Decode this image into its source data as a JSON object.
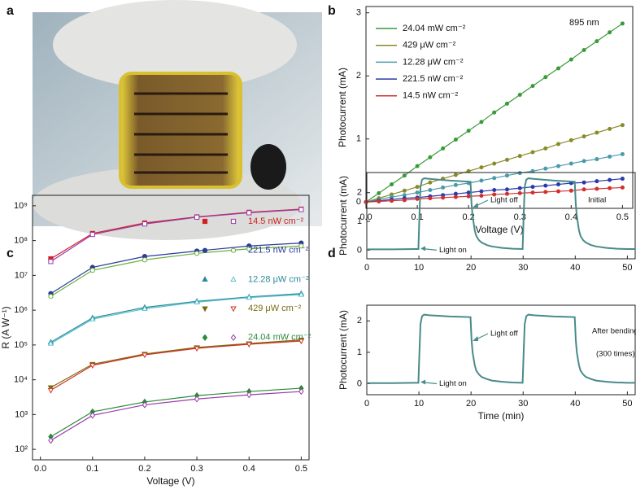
{
  "chart_data": [
    {
      "type": "image",
      "panel": "a"
    },
    {
      "type": "line",
      "panel": "b",
      "x_label": "Voltage (V)",
      "y_label": "Photocurrent (mA)",
      "annotation": "895 nm",
      "legend": "upper left",
      "x": [
        0,
        0.025,
        0.05,
        0.075,
        0.1,
        0.125,
        0.15,
        0.175,
        0.2,
        0.225,
        0.25,
        0.275,
        0.3,
        0.325,
        0.35,
        0.375,
        0.4,
        0.425,
        0.45,
        0.475,
        0.5
      ],
      "series": [
        {
          "name": "24.04 mW cm⁻²",
          "color": "#3a9a3a",
          "marker": "circle",
          "values": [
            0,
            0.14,
            0.28,
            0.42,
            0.57,
            0.71,
            0.85,
            0.99,
            1.13,
            1.27,
            1.42,
            1.56,
            1.7,
            1.84,
            1.98,
            2.12,
            2.26,
            2.41,
            2.55,
            2.69,
            2.83
          ]
        },
        {
          "name": "429 μW cm⁻²",
          "color": "#8a8a2a",
          "marker": "circle",
          "values": [
            0,
            0.06,
            0.12,
            0.18,
            0.24,
            0.31,
            0.37,
            0.43,
            0.49,
            0.55,
            0.61,
            0.67,
            0.73,
            0.79,
            0.85,
            0.92,
            0.98,
            1.04,
            1.1,
            1.16,
            1.22
          ]
        },
        {
          "name": "12.28 μW cm⁻²",
          "color": "#4a9aaa",
          "marker": "circle",
          "values": [
            0,
            0.04,
            0.08,
            0.11,
            0.15,
            0.19,
            0.23,
            0.27,
            0.3,
            0.34,
            0.38,
            0.42,
            0.46,
            0.49,
            0.53,
            0.57,
            0.61,
            0.65,
            0.68,
            0.72,
            0.76
          ]
        },
        {
          "name": "221.5 nW cm⁻²",
          "color": "#2a3aaa",
          "marker": "circle",
          "values": [
            0,
            0.02,
            0.04,
            0.06,
            0.07,
            0.09,
            0.11,
            0.13,
            0.15,
            0.17,
            0.19,
            0.2,
            0.22,
            0.24,
            0.26,
            0.28,
            0.3,
            0.31,
            0.33,
            0.35,
            0.37
          ]
        },
        {
          "name": "14.5 nW cm⁻²",
          "color": "#d03030",
          "marker": "circle",
          "values": [
            0,
            0.01,
            0.02,
            0.03,
            0.05,
            0.06,
            0.07,
            0.08,
            0.09,
            0.1,
            0.12,
            0.13,
            0.14,
            0.15,
            0.16,
            0.17,
            0.18,
            0.2,
            0.21,
            0.22,
            0.23
          ]
        }
      ],
      "xlim": [
        0,
        0.52
      ],
      "ylim": [
        -0.1,
        3.1
      ],
      "xticks": [
        {
          "value": 0,
          "label": "0.0"
        },
        0.1,
        0.2,
        0.3,
        0.4,
        0.5
      ],
      "yticks": [
        0,
        1,
        2,
        3
      ]
    },
    {
      "type": "scatter",
      "panel": "c",
      "log_y": true,
      "fit": true,
      "x_label": "Voltage (V)",
      "y_label": "R (A W⁻¹)",
      "x": [
        0.02,
        0.1,
        0.2,
        0.3,
        0.4,
        0.5
      ],
      "series": [
        {
          "name": "14.5 nW cm⁻²",
          "color": "#d02020",
          "marker": "square",
          "values": [
            30000000,
            160000000,
            320000000,
            480000000,
            650000000,
            800000000
          ],
          "open_color": "#9a3aaa",
          "open_marker": "square",
          "open_values": [
            25000000,
            150000000,
            300000000,
            470000000,
            630000000,
            780000000
          ]
        },
        {
          "name": "221.5 nW cm⁻²",
          "color": "#2a3a9a",
          "marker": "circle",
          "values": [
            3000000,
            17000000,
            35000000,
            50000000,
            70000000,
            85000000
          ],
          "open_color": "#6ab03a",
          "open_marker": "circle",
          "open_values": [
            2500000,
            14000000,
            28000000,
            43000000,
            58000000,
            70000000
          ]
        },
        {
          "name": "12.28 μW cm⁻²",
          "color": "#2a8a9a",
          "marker": "triangle-up",
          "values": [
            120000,
            600000,
            1200000,
            1800000,
            2400000,
            3000000
          ],
          "open_color": "#5ac0d0",
          "open_marker": "triangle-up",
          "open_values": [
            110000,
            550000,
            1100000,
            1700000,
            2300000,
            2800000
          ]
        },
        {
          "name": "429 μW cm⁻²",
          "color": "#7a6a10",
          "marker": "triangle-down",
          "values": [
            6000,
            28000,
            55000,
            85000,
            110000,
            140000
          ],
          "open_color": "#d03020",
          "open_marker": "triangle-down",
          "open_values": [
            5000,
            26000,
            52000,
            80000,
            105000,
            130000
          ]
        },
        {
          "name": "24.04 mW cm⁻²",
          "color": "#2a8a3a",
          "marker": "diamond",
          "values": [
            230,
            1200,
            2300,
            3500,
            4600,
            5700
          ],
          "open_color": "#9a3aaa",
          "open_marker": "diamond",
          "open_values": [
            180,
            950,
            1900,
            2800,
            3700,
            4600
          ]
        }
      ],
      "xlim": [
        -0.015,
        0.515
      ],
      "ylim": [
        50,
        2000000000
      ],
      "xticks": [
        {
          "value": 0,
          "label": "0.0"
        },
        0.1,
        0.2,
        0.3,
        0.4,
        0.5
      ],
      "yticks": [
        {
          "value": 100,
          "label": "10²"
        },
        {
          "value": 1000,
          "label": "10³"
        },
        {
          "value": 10000,
          "label": "10⁴"
        },
        {
          "value": 100000,
          "label": "10⁵"
        },
        {
          "value": 1000000,
          "label": "10⁶"
        },
        {
          "value": 10000000,
          "label": "10⁷"
        },
        {
          "value": 100000000,
          "label": "10⁸"
        },
        {
          "value": 1000000000,
          "label": "10⁹"
        }
      ]
    },
    {
      "type": "line",
      "panel": "d",
      "y_label": "Photocurrent (mA)",
      "annotations": [
        "Light on",
        "Light off",
        "Initial"
      ],
      "x": [
        0,
        5,
        9.9,
        10.1,
        10.3,
        10.6,
        11,
        12,
        14,
        16,
        18,
        19.9,
        20.1,
        20.3,
        20.7,
        21,
        21.5,
        22,
        23,
        24,
        26,
        28,
        29.9,
        30.1,
        30.3,
        30.6,
        31,
        32,
        34,
        36,
        38,
        39.9,
        40.1,
        40.3,
        40.7,
        41,
        41.5,
        42,
        43,
        44,
        46,
        48,
        50,
        51.5
      ],
      "series": [
        {
          "color": "#4a8a8a",
          "values": [
            0.03,
            0.03,
            0.04,
            1.2,
            2.2,
            2.45,
            2.5,
            2.48,
            2.45,
            2.42,
            2.4,
            2.38,
            1.6,
            1.2,
            0.7,
            0.5,
            0.35,
            0.27,
            0.18,
            0.13,
            0.08,
            0.05,
            0.04,
            1.2,
            2.2,
            2.45,
            2.5,
            2.48,
            2.45,
            2.42,
            2.4,
            2.38,
            1.6,
            1.2,
            0.7,
            0.5,
            0.35,
            0.27,
            0.18,
            0.13,
            0.08,
            0.05,
            0.04,
            0.04
          ]
        }
      ],
      "xlim": [
        0,
        51.5
      ],
      "ylim": [
        -0.3,
        2.7
      ],
      "xticks": [
        0,
        10,
        20,
        30,
        40,
        50
      ],
      "yticks": [
        0,
        1,
        2
      ]
    },
    {
      "type": "line",
      "y_label": "Photocurrent (mA)",
      "x_label": "Time (min)",
      "annotations": [
        "Light on",
        "Light off",
        "After bending",
        "(300 times)"
      ],
      "x": [
        0,
        5,
        9.9,
        10.1,
        10.3,
        10.6,
        11,
        12,
        14,
        16,
        18,
        19.9,
        20.1,
        20.3,
        20.7,
        21,
        21.5,
        22,
        23,
        24,
        26,
        28,
        29.9,
        30.1,
        30.3,
        30.6,
        31,
        32,
        34,
        36,
        38,
        39.9,
        40.1,
        40.3,
        40.7,
        41,
        41.5,
        42,
        43,
        44,
        46,
        48,
        50,
        51.5
      ],
      "series": [
        {
          "color": "#4a8a8a",
          "values": [
            0.02,
            0.02,
            0.03,
            1.0,
            1.9,
            2.15,
            2.2,
            2.18,
            2.16,
            2.14,
            2.13,
            2.12,
            1.4,
            1.0,
            0.6,
            0.42,
            0.3,
            0.22,
            0.15,
            0.1,
            0.06,
            0.04,
            0.03,
            1.0,
            1.9,
            2.15,
            2.2,
            2.18,
            2.16,
            2.14,
            2.13,
            2.12,
            1.4,
            1.0,
            0.6,
            0.42,
            0.3,
            0.22,
            0.15,
            0.1,
            0.06,
            0.04,
            0.03,
            0.03
          ]
        }
      ],
      "xlim": [
        0,
        51.5
      ],
      "ylim": [
        -0.35,
        2.5
      ],
      "xticks": [
        0,
        10,
        20,
        30,
        40,
        50
      ],
      "yticks": [
        0,
        1,
        2
      ]
    }
  ]
}
